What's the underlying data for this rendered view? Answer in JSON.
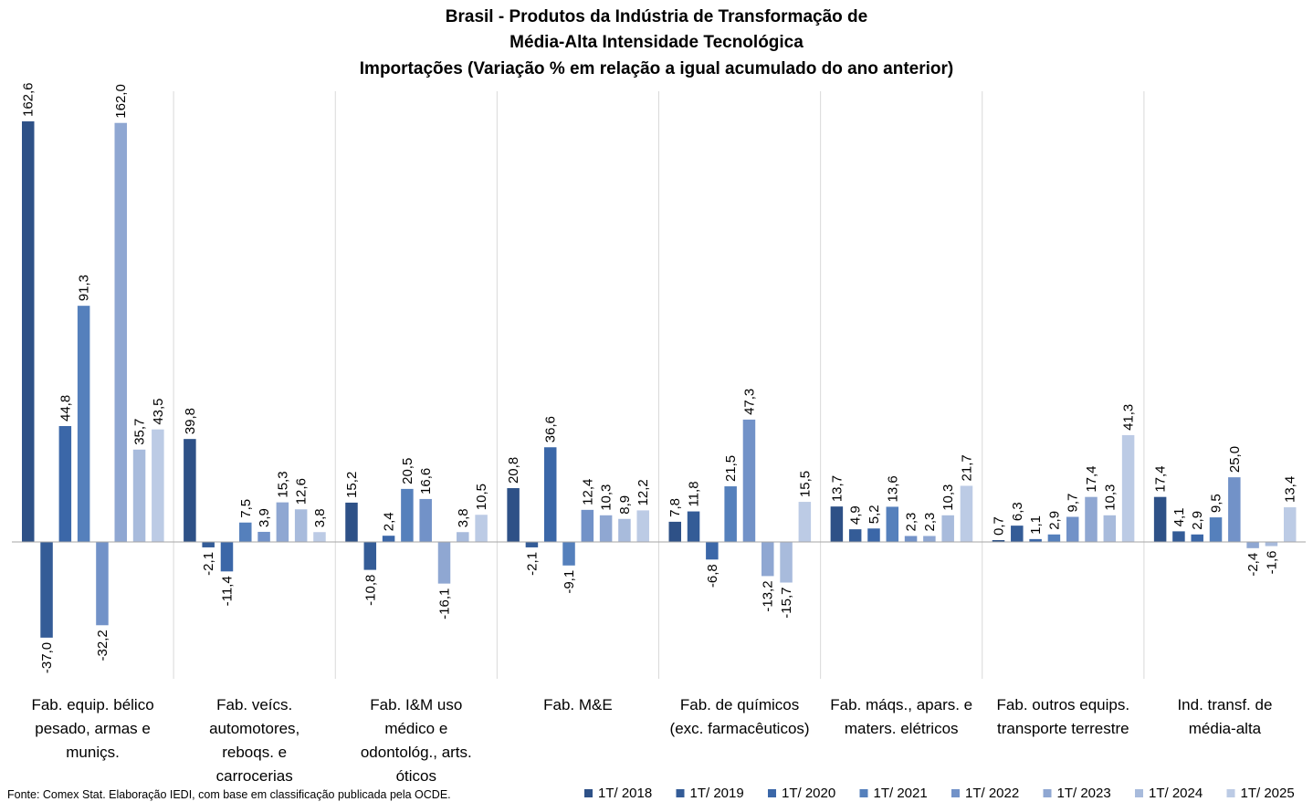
{
  "chart_data": {
    "type": "bar",
    "title": [
      "Brasil - Produtos da Indústria de Transformação de",
      "Média-Alta Intensidade Tecnológica",
      "Importações (Variação % em relação a igual acumulado do ano anterior)"
    ],
    "categories": [
      [
        "Fab. equip. bélico",
        "pesado, armas e",
        "muniçs."
      ],
      [
        "Fab. veícs.",
        "automotores,",
        "reboqs. e",
        "carrocerias"
      ],
      [
        "Fab. I&M uso",
        "médico e",
        "odontológ., arts.",
        "óticos"
      ],
      [
        "Fab. M&E"
      ],
      [
        "Fab. de químicos",
        "(exc. farmacêuticos)"
      ],
      [
        "Fab. máqs., apars. e",
        "maters. elétricos"
      ],
      [
        "Fab. outros equips.",
        "transporte terrestre"
      ],
      [
        "Ind. transf. de",
        "média-alta"
      ]
    ],
    "series": [
      {
        "name": "1T/ 2018",
        "color": "#2e5187",
        "values": [
          162.6,
          39.8,
          15.2,
          20.8,
          7.8,
          13.7,
          0.7,
          17.4
        ]
      },
      {
        "name": "1T/ 2019",
        "color": "#345c97",
        "values": [
          -37.0,
          -2.1,
          -10.8,
          -2.1,
          11.8,
          4.9,
          6.3,
          4.1
        ]
      },
      {
        "name": "1T/ 2020",
        "color": "#3b67a8",
        "values": [
          44.8,
          -11.4,
          2.4,
          36.6,
          -6.8,
          5.2,
          1.1,
          2.9
        ]
      },
      {
        "name": "1T/ 2021",
        "color": "#5580bc",
        "values": [
          91.3,
          7.5,
          20.5,
          -9.1,
          21.5,
          13.6,
          2.9,
          9.5
        ]
      },
      {
        "name": "1T/ 2022",
        "color": "#7292c8",
        "values": [
          -32.2,
          3.9,
          16.6,
          12.4,
          47.3,
          2.3,
          9.7,
          25.0
        ]
      },
      {
        "name": "1T/ 2023",
        "color": "#8fa7d2",
        "values": [
          162.0,
          15.3,
          -16.1,
          10.3,
          -13.2,
          2.3,
          17.4,
          -2.4
        ]
      },
      {
        "name": "1T/ 2024",
        "color": "#a8bbdc",
        "values": [
          35.7,
          12.6,
          3.8,
          8.9,
          -15.7,
          10.3,
          10.3,
          -1.6
        ]
      },
      {
        "name": "1T/ 2025",
        "color": "#bccbe5",
        "values": [
          43.5,
          3.8,
          10.5,
          12.2,
          15.5,
          21.7,
          41.3,
          13.4
        ]
      }
    ],
    "value_labels": [
      [
        "162,6",
        "39,8",
        "15,2",
        "20,8",
        "7,8",
        "13,7",
        "0,7",
        "17,4"
      ],
      [
        "-37,0",
        "-2,1",
        "-10,8",
        "-2,1",
        "11,8",
        "4,9",
        "6,3",
        "4,1"
      ],
      [
        "44,8",
        "-11,4",
        "2,4",
        "36,6",
        "-6,8",
        "5,2",
        "1,1",
        "2,9"
      ],
      [
        "91,3",
        "7,5",
        "20,5",
        "-9,1",
        "21,5",
        "13,6",
        "2,9",
        "9,5"
      ],
      [
        "-32,2",
        "3,9",
        "16,6",
        "12,4",
        "47,3",
        "2,3",
        "9,7",
        "25,0"
      ],
      [
        "162,0",
        "15,3",
        "-16,1",
        "10,3",
        "-13,2",
        "2,3",
        "17,4",
        "-2,4"
      ],
      [
        "35,7",
        "12,6",
        "3,8",
        "8,9",
        "-15,7",
        "10,3",
        "10,3",
        "-1,6"
      ],
      [
        "43,5",
        "3,8",
        "10,5",
        "12,2",
        "15,5",
        "21,7",
        "41,3",
        "13,4"
      ]
    ],
    "ylim": [
      -53,
      167
    ],
    "grid": false,
    "legend_position": "bottom-right"
  },
  "footer": {
    "source": "Fonte: Comex Stat. Elaboração IEDI, com base em classificação publicada pela OCDE."
  }
}
